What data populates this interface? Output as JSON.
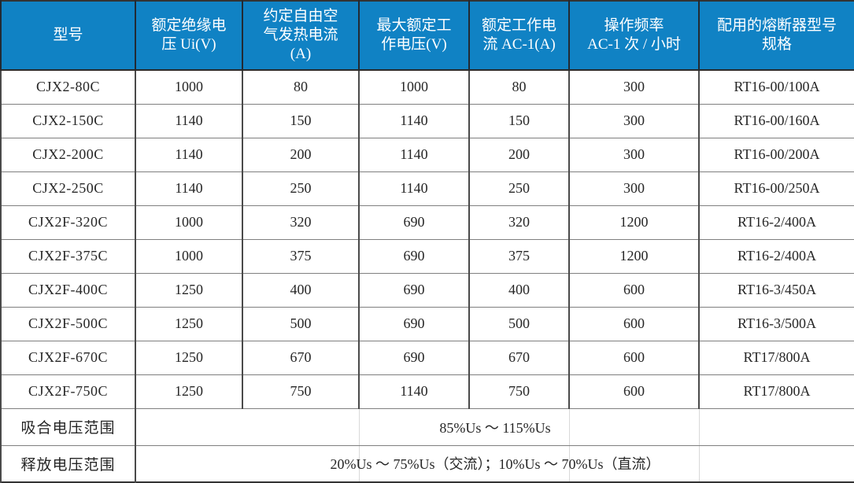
{
  "table": {
    "title": "CJX2 / CJX2F contactor specifications",
    "colors": {
      "header_bg": "#1082c4",
      "header_text": "#ffffff",
      "body_text": "#262626",
      "border_outer": "#333333",
      "border_inner": "#7f7f7f"
    },
    "header": {
      "columns": [
        {
          "id": "model",
          "label": "型号"
        },
        {
          "id": "rated-insulation-voltage",
          "label": "额定绝缘电\n压 Ui(V)"
        },
        {
          "id": "conventional-free-air-thermal-current",
          "label": "约定自由空\n气发热电流\n(A)"
        },
        {
          "id": "max-rated-working-voltage",
          "label": "最大额定工\n作电压(V)"
        },
        {
          "id": "rated-working-current-ac1",
          "label": "额定工作电\n流 AC-1(A)"
        },
        {
          "id": "operating-frequency",
          "label": "操作频率\nAC-1 次 / 小时"
        },
        {
          "id": "matched-fuse-model",
          "label": "配用的熔断器型号\n规格"
        }
      ]
    },
    "rows": [
      [
        "CJX2-80C",
        "1000",
        "80",
        "1000",
        "80",
        "300",
        "RT16-00/100A"
      ],
      [
        "CJX2-150C",
        "1140",
        "150",
        "1140",
        "150",
        "300",
        "RT16-00/160A"
      ],
      [
        "CJX2-200C",
        "1140",
        "200",
        "1140",
        "200",
        "300",
        "RT16-00/200A"
      ],
      [
        "CJX2-250C",
        "1140",
        "250",
        "1140",
        "250",
        "300",
        "RT16-00/250A"
      ],
      [
        "CJX2F-320C",
        "1000",
        "320",
        "690",
        "320",
        "1200",
        "RT16-2/400A"
      ],
      [
        "CJX2F-375C",
        "1000",
        "375",
        "690",
        "375",
        "1200",
        "RT16-2/400A"
      ],
      [
        "CJX2F-400C",
        "1250",
        "400",
        "690",
        "400",
        "600",
        "RT16-3/450A"
      ],
      [
        "CJX2F-500C",
        "1250",
        "500",
        "690",
        "500",
        "600",
        "RT16-3/500A"
      ],
      [
        "CJX2F-670C",
        "1250",
        "670",
        "690",
        "670",
        "600",
        "RT17/800A"
      ],
      [
        "CJX2F-750C",
        "1250",
        "750",
        "1140",
        "750",
        "600",
        "RT17/800A"
      ]
    ],
    "footer": [
      {
        "label": "吸合电压范围",
        "value": "85%Us ～ 115%Us"
      },
      {
        "label": "释放电压范围",
        "value": "20%Us ～ 75%Us（交流）；10%Us ～ 70%Us（直流）"
      }
    ]
  }
}
